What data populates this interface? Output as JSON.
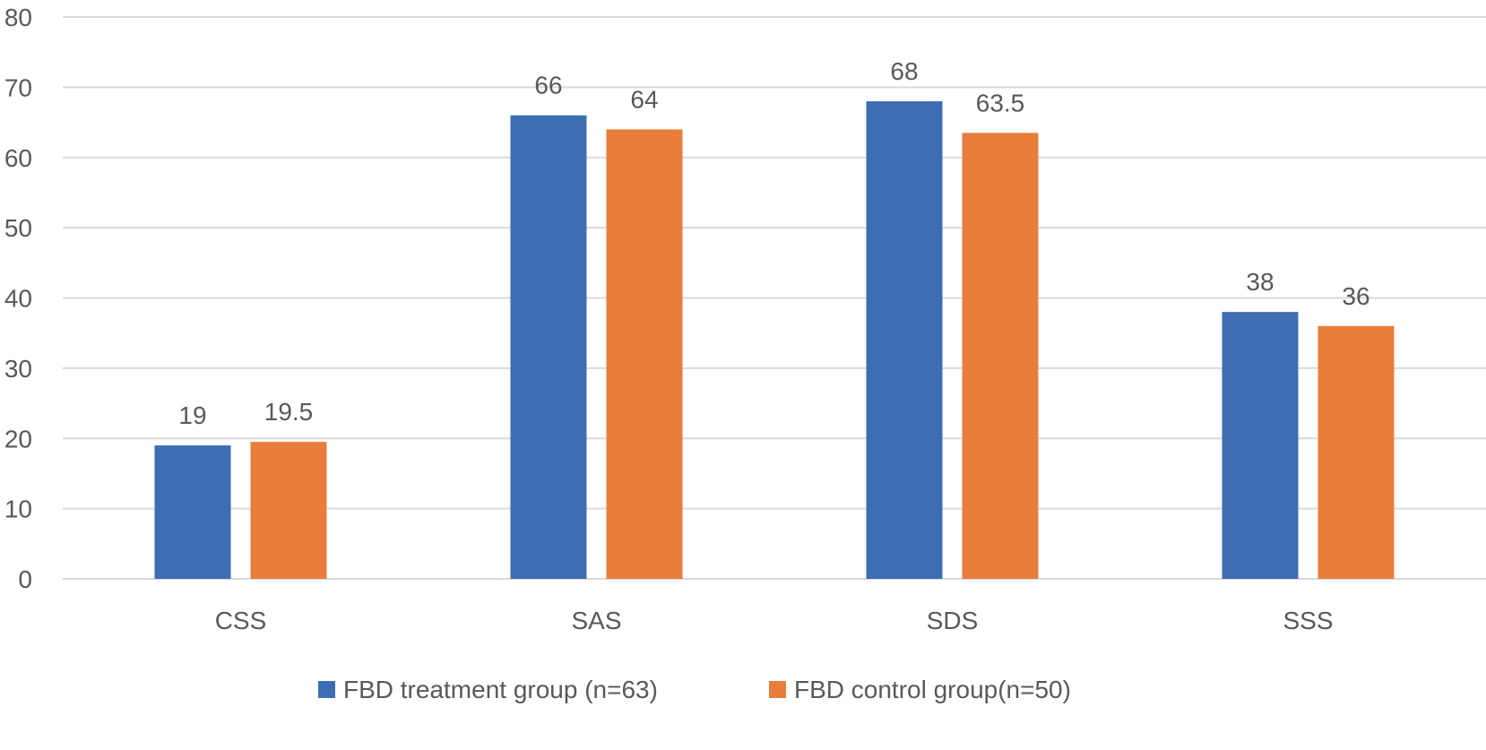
{
  "chart_data": {
    "type": "bar",
    "title": "",
    "xlabel": "",
    "ylabel": "",
    "categories": [
      "CSS",
      "SAS",
      "SDS",
      "SSS"
    ],
    "ylim": [
      0,
      80
    ],
    "yticks": [
      0,
      10,
      20,
      30,
      40,
      50,
      60,
      70,
      80
    ],
    "grid": true,
    "legend_position": "bottom",
    "series": [
      {
        "name": "FBD treatment group (n=63)",
        "color": "#3d6eb4",
        "values": [
          19,
          66,
          68,
          38
        ],
        "labels": [
          "19",
          "66",
          "68",
          "38"
        ]
      },
      {
        "name": "FBD control group(n=50)",
        "color": "#e97d3b",
        "values": [
          19.5,
          64,
          63.5,
          36
        ],
        "labels": [
          "19.5",
          "64",
          "63.5",
          "36"
        ]
      }
    ]
  }
}
